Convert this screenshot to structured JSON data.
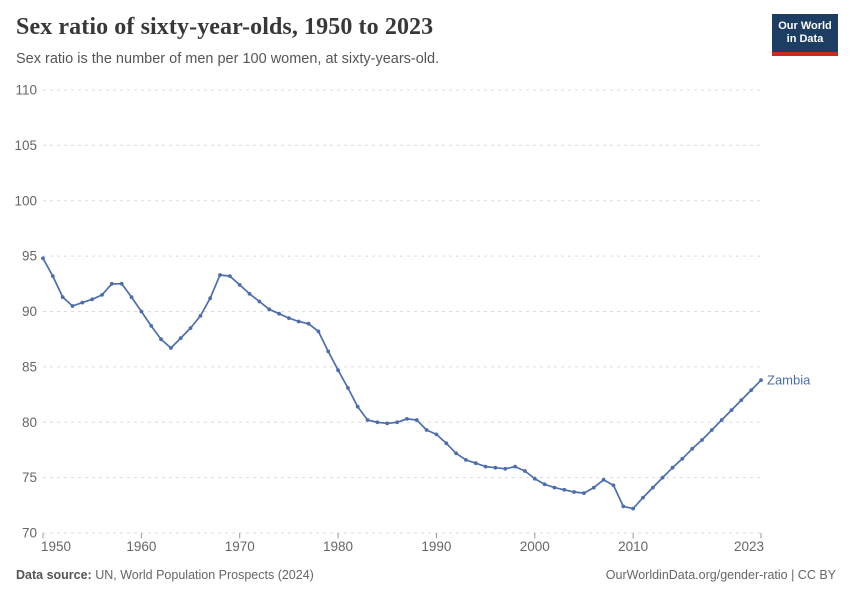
{
  "header": {
    "title": "Sex ratio of sixty-year-olds, 1950 to 2023",
    "subtitle": "Sex ratio is the number of men per 100 women, at sixty-years-old."
  },
  "logo": {
    "line1": "Our World",
    "line2": "in Data",
    "bg_color": "#1d3d63",
    "accent_color": "#cd2a1e"
  },
  "footer": {
    "source_label": "Data source:",
    "source_value": " UN, World Population Prospects (2024)",
    "right_text": "OurWorldinData.org/gender-ratio | CC BY"
  },
  "colors": {
    "line": "#4d6ead",
    "gridline": "#dcdcdc",
    "tick_mark": "#999999",
    "axis_text": "#666666"
  },
  "chart_data": {
    "type": "line",
    "title": "Sex ratio of sixty-year-olds, 1950 to 2023",
    "xlabel": "",
    "ylabel": "",
    "xlim": [
      1950,
      2023
    ],
    "ylim": [
      70,
      110
    ],
    "x_ticks": [
      1950,
      1960,
      1970,
      1980,
      1990,
      2000,
      2010,
      2023
    ],
    "y_ticks": [
      70,
      75,
      80,
      85,
      90,
      95,
      100,
      105,
      110
    ],
    "grid": true,
    "legend_position": "end-of-line",
    "series": [
      {
        "name": "Zambia",
        "color": "#4d6ead",
        "x": [
          1950,
          1951,
          1952,
          1953,
          1954,
          1955,
          1956,
          1957,
          1958,
          1959,
          1960,
          1961,
          1962,
          1963,
          1964,
          1965,
          1966,
          1967,
          1968,
          1969,
          1970,
          1971,
          1972,
          1973,
          1974,
          1975,
          1976,
          1977,
          1978,
          1979,
          1980,
          1981,
          1982,
          1983,
          1984,
          1985,
          1986,
          1987,
          1988,
          1989,
          1990,
          1991,
          1992,
          1993,
          1994,
          1995,
          1996,
          1997,
          1998,
          1999,
          2000,
          2001,
          2002,
          2003,
          2004,
          2005,
          2006,
          2007,
          2008,
          2009,
          2010,
          2011,
          2012,
          2013,
          2014,
          2015,
          2016,
          2017,
          2018,
          2019,
          2020,
          2021,
          2022,
          2023
        ],
        "y": [
          94.8,
          93.2,
          91.3,
          90.5,
          90.8,
          91.1,
          91.5,
          92.5,
          92.5,
          91.3,
          90.0,
          88.7,
          87.5,
          86.7,
          87.6,
          88.5,
          89.6,
          91.2,
          93.3,
          93.2,
          92.4,
          91.6,
          90.9,
          90.2,
          89.8,
          89.4,
          89.1,
          88.9,
          88.2,
          86.4,
          84.7,
          83.1,
          81.4,
          80.2,
          80.0,
          79.9,
          80.0,
          80.3,
          80.2,
          79.3,
          78.9,
          78.1,
          77.2,
          76.6,
          76.3,
          76.0,
          75.9,
          75.8,
          76.0,
          75.6,
          74.9,
          74.4,
          74.1,
          73.9,
          73.7,
          73.6,
          74.1,
          74.8,
          74.3,
          72.4,
          72.2,
          73.2,
          74.1,
          75.0,
          75.9,
          76.7,
          77.6,
          78.4,
          79.3,
          80.2,
          81.1,
          82.0,
          82.9,
          83.8
        ]
      }
    ]
  }
}
